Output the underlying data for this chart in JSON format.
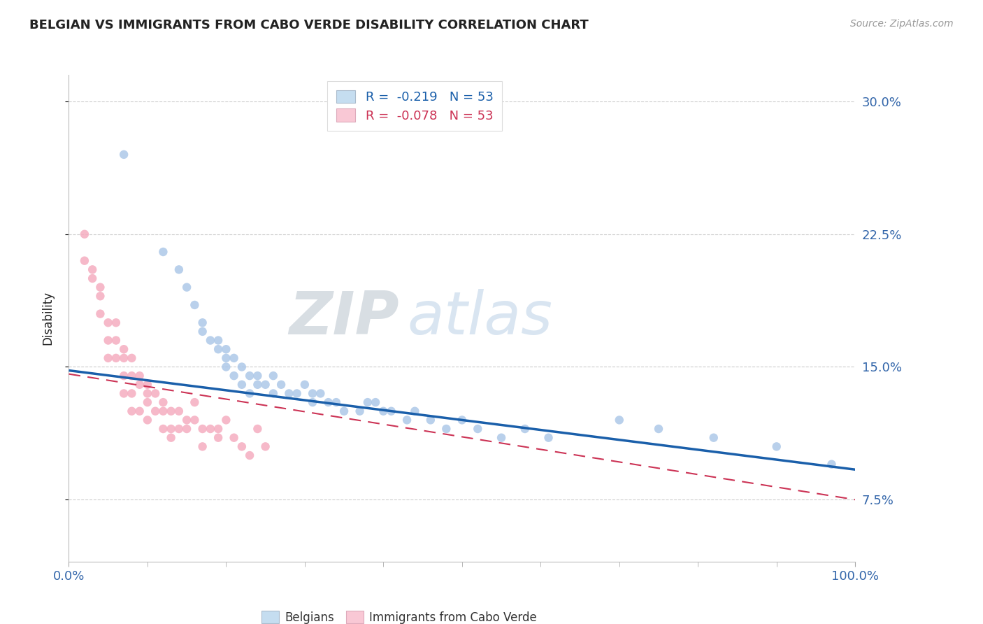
{
  "title": "BELGIAN VS IMMIGRANTS FROM CABO VERDE DISABILITY CORRELATION CHART",
  "source_text": "Source: ZipAtlas.com",
  "ylabel": "Disability",
  "xlabel": "",
  "xlim": [
    0.0,
    1.0
  ],
  "ylim": [
    0.04,
    0.315
  ],
  "yticks": [
    0.075,
    0.15,
    0.225,
    0.3
  ],
  "ytick_labels": [
    "7.5%",
    "15.0%",
    "22.5%",
    "30.0%"
  ],
  "xtick_labels_major": [
    "0.0%",
    "100.0%"
  ],
  "xtick_major": [
    0.0,
    1.0
  ],
  "belgian_R": "-0.219",
  "belgian_N": "53",
  "cabo_verde_R": "-0.078",
  "cabo_verde_N": "53",
  "belgian_color": "#adc8e8",
  "cabo_verde_color": "#f5adc0",
  "trend_belgian_color": "#1a5faa",
  "trend_cabo_verde_color": "#cc3355",
  "legend_box_belgian": "#c5ddf0",
  "legend_box_cabo_verde": "#f9c8d5",
  "watermark_color_zip": "#c8d8e8",
  "watermark_color_atlas": "#c0d4e8",
  "grid_color": "#cccccc",
  "title_color": "#222222",
  "axis_label_color": "#3366aa",
  "belgian_x": [
    0.07,
    0.12,
    0.14,
    0.15,
    0.16,
    0.17,
    0.17,
    0.18,
    0.19,
    0.19,
    0.2,
    0.2,
    0.2,
    0.21,
    0.21,
    0.22,
    0.22,
    0.23,
    0.23,
    0.24,
    0.24,
    0.25,
    0.26,
    0.26,
    0.27,
    0.28,
    0.29,
    0.3,
    0.31,
    0.31,
    0.32,
    0.33,
    0.34,
    0.35,
    0.37,
    0.38,
    0.39,
    0.4,
    0.41,
    0.43,
    0.44,
    0.46,
    0.48,
    0.5,
    0.52,
    0.55,
    0.58,
    0.61,
    0.7,
    0.75,
    0.82,
    0.9,
    0.97
  ],
  "belgian_y": [
    0.27,
    0.215,
    0.205,
    0.195,
    0.185,
    0.175,
    0.17,
    0.165,
    0.165,
    0.16,
    0.16,
    0.155,
    0.15,
    0.155,
    0.145,
    0.15,
    0.14,
    0.145,
    0.135,
    0.145,
    0.14,
    0.14,
    0.145,
    0.135,
    0.14,
    0.135,
    0.135,
    0.14,
    0.135,
    0.13,
    0.135,
    0.13,
    0.13,
    0.125,
    0.125,
    0.13,
    0.13,
    0.125,
    0.125,
    0.12,
    0.125,
    0.12,
    0.115,
    0.12,
    0.115,
    0.11,
    0.115,
    0.11,
    0.12,
    0.115,
    0.11,
    0.105,
    0.095
  ],
  "cabo_verde_x": [
    0.02,
    0.02,
    0.03,
    0.03,
    0.04,
    0.04,
    0.04,
    0.05,
    0.05,
    0.05,
    0.06,
    0.06,
    0.06,
    0.07,
    0.07,
    0.07,
    0.07,
    0.08,
    0.08,
    0.08,
    0.08,
    0.09,
    0.09,
    0.09,
    0.1,
    0.1,
    0.1,
    0.1,
    0.11,
    0.11,
    0.12,
    0.12,
    0.12,
    0.13,
    0.13,
    0.13,
    0.14,
    0.14,
    0.15,
    0.15,
    0.16,
    0.16,
    0.17,
    0.17,
    0.18,
    0.19,
    0.19,
    0.2,
    0.21,
    0.22,
    0.23,
    0.24,
    0.25
  ],
  "cabo_verde_y": [
    0.225,
    0.21,
    0.2,
    0.205,
    0.195,
    0.19,
    0.18,
    0.175,
    0.165,
    0.155,
    0.175,
    0.165,
    0.155,
    0.16,
    0.155,
    0.145,
    0.135,
    0.155,
    0.145,
    0.135,
    0.125,
    0.145,
    0.14,
    0.125,
    0.14,
    0.135,
    0.13,
    0.12,
    0.135,
    0.125,
    0.13,
    0.125,
    0.115,
    0.125,
    0.115,
    0.11,
    0.125,
    0.115,
    0.12,
    0.115,
    0.13,
    0.12,
    0.115,
    0.105,
    0.115,
    0.115,
    0.11,
    0.12,
    0.11,
    0.105,
    0.1,
    0.115,
    0.105
  ],
  "trend_belgian_x0": 0.0,
  "trend_belgian_y0": 0.148,
  "trend_belgian_x1": 1.0,
  "trend_belgian_y1": 0.092,
  "trend_cabo_x0": 0.0,
  "trend_cabo_y0": 0.146,
  "trend_cabo_x1": 1.0,
  "trend_cabo_y1": 0.075
}
